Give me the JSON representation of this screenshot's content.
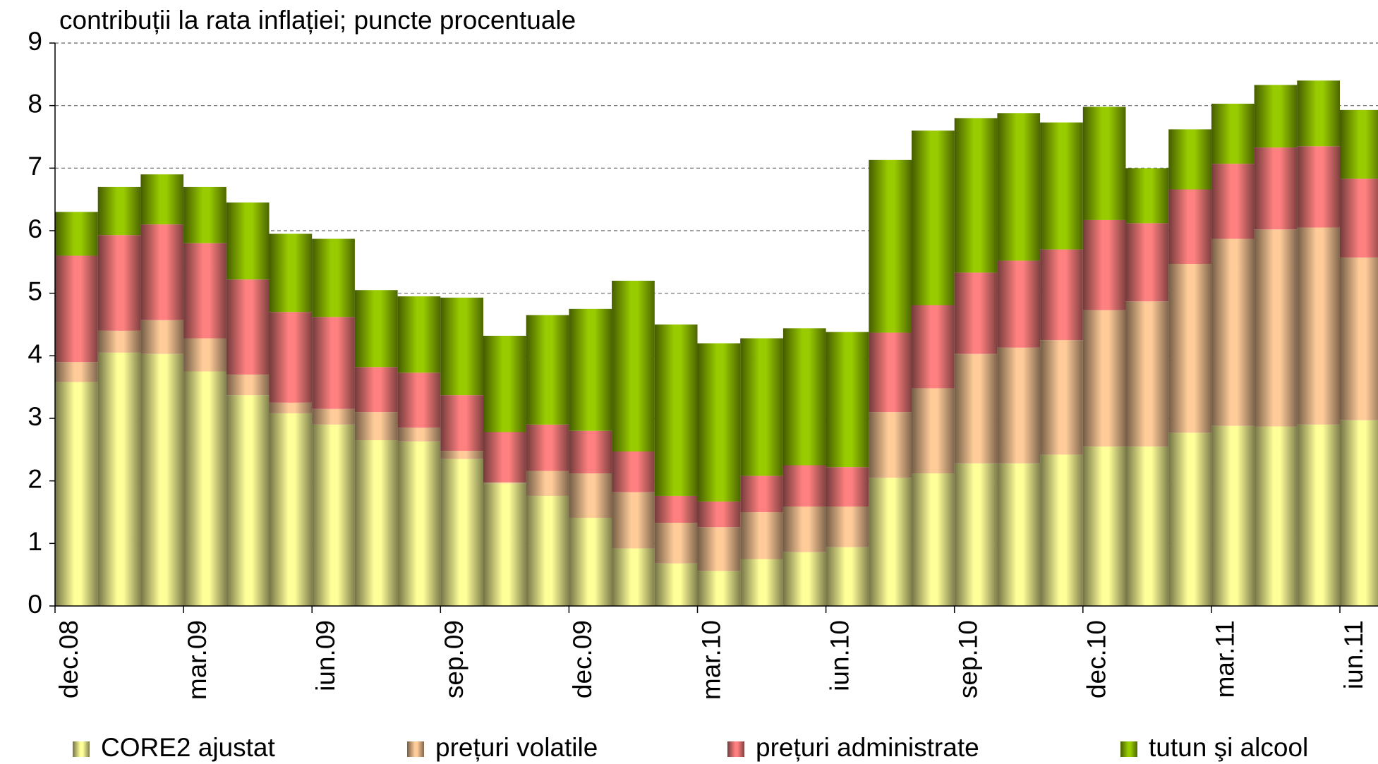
{
  "chart_data": {
    "type": "stacked_bar",
    "title": "contribuții la rata inflației; puncte procentuale",
    "categories": [
      "dec.08",
      null,
      null,
      "mar.09",
      null,
      null,
      "iun.09",
      null,
      null,
      "sep.09",
      null,
      null,
      "dec.09",
      null,
      null,
      "mar.10",
      null,
      null,
      "iun.10",
      null,
      null,
      "sep.10",
      null,
      null,
      "dec.10",
      null,
      null,
      "mar.11",
      null,
      null,
      "iun.11"
    ],
    "series": [
      {
        "name": "CORE2 ajustat",
        "color": "#ffff99",
        "values": [
          3.58,
          4.05,
          4.03,
          3.75,
          3.37,
          3.08,
          2.9,
          2.65,
          2.63,
          2.35,
          1.96,
          1.76,
          1.41,
          0.92,
          0.68,
          0.56,
          0.75,
          0.86,
          0.94,
          2.05,
          2.12,
          2.28,
          2.28,
          2.42,
          2.55,
          2.55,
          2.77,
          2.88,
          2.87,
          2.9,
          2.97
        ]
      },
      {
        "name": "prețuri volatile",
        "color": "#ffcc99",
        "values": [
          0.32,
          0.35,
          0.54,
          0.53,
          0.33,
          0.17,
          0.25,
          0.45,
          0.22,
          0.13,
          0.02,
          0.4,
          0.71,
          0.9,
          0.65,
          0.7,
          0.75,
          0.73,
          0.65,
          1.05,
          1.36,
          1.75,
          1.85,
          1.83,
          2.18,
          2.32,
          2.7,
          2.99,
          3.15,
          3.15,
          2.6
        ]
      },
      {
        "name": "prețuri administrate",
        "color": "#ff8080",
        "values": [
          1.7,
          1.53,
          1.53,
          1.52,
          1.52,
          1.45,
          1.47,
          0.72,
          0.88,
          0.89,
          0.8,
          0.74,
          0.68,
          0.65,
          0.43,
          0.41,
          0.58,
          0.66,
          0.63,
          1.27,
          1.33,
          1.3,
          1.39,
          1.45,
          1.44,
          1.25,
          1.19,
          1.2,
          1.31,
          1.3,
          1.26
        ]
      },
      {
        "name": "tutun şi alcool",
        "color": "#99cc00",
        "values": [
          0.7,
          0.77,
          0.8,
          0.9,
          1.23,
          1.25,
          1.25,
          1.23,
          1.22,
          1.56,
          1.54,
          1.75,
          1.95,
          2.73,
          2.74,
          2.53,
          2.2,
          2.19,
          2.16,
          2.76,
          2.79,
          2.47,
          2.36,
          2.03,
          1.81,
          0.88,
          0.96,
          0.96,
          1.0,
          1.05,
          1.1
        ]
      }
    ],
    "ylim": [
      0,
      9
    ],
    "yticks": [
      0,
      1,
      2,
      3,
      4,
      5,
      6,
      7,
      8,
      9
    ],
    "grid": true,
    "legend": "bottom"
  }
}
